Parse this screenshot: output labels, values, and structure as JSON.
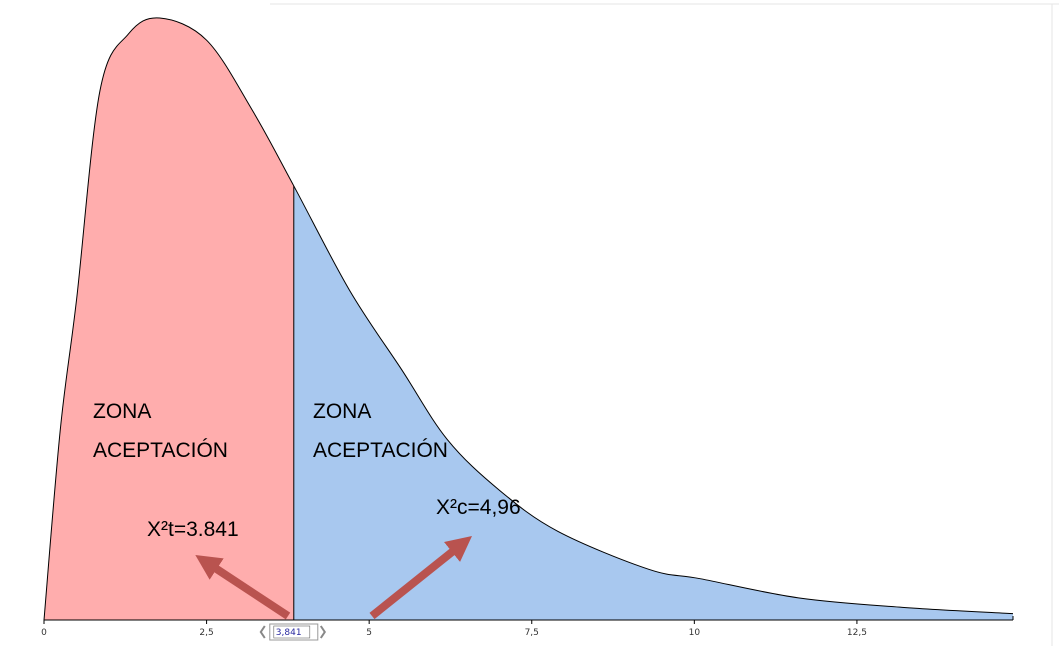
{
  "chart_data": {
    "type": "area",
    "x": [
      0,
      0.25,
      0.5,
      0.86,
      1.3,
      1.78,
      2.5,
      3.2,
      3.841,
      4.7,
      5.5,
      6.2,
      7,
      7.9,
      9.3,
      10.1,
      11.6,
      13.2,
      14.9
    ],
    "values": [
      0,
      0.06,
      0.101,
      0.167,
      0.185,
      0.19,
      0.183,
      0.161,
      0.137,
      0.104,
      0.079,
      0.057,
      0.041,
      0.028,
      0.016,
      0.013,
      0.007,
      0.004,
      0.002
    ],
    "threshold": {
      "value": 3.841,
      "label": "3,841"
    },
    "colors": {
      "left": "#ffadad",
      "right": "#a8c8ef"
    },
    "xlim": [
      0,
      14.9
    ],
    "ylim": [
      0,
      0.19
    ],
    "xticks": [
      0,
      {
        "value": 2.5,
        "label": "2,5"
      },
      5,
      {
        "value": 7.5,
        "label": "7,5"
      },
      10,
      {
        "value": 12.5,
        "label": "12,5"
      }
    ],
    "annotations": [
      {
        "lines": [
          "ZONA",
          "ACEPTACIÓN"
        ]
      },
      {
        "lines": [
          "ZONA",
          "ACEPTACIÓN"
        ]
      },
      {
        "text": "X²t=3.841"
      },
      {
        "text": "X²c=4,96"
      }
    ]
  }
}
